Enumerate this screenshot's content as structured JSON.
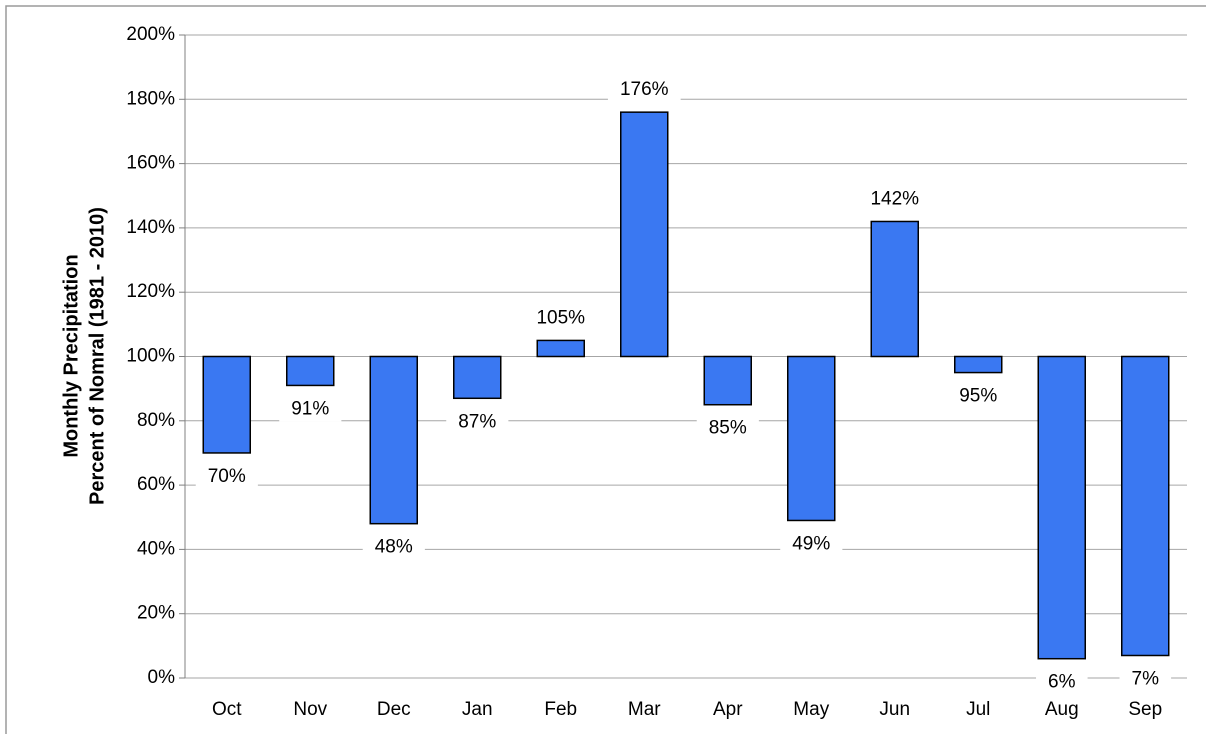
{
  "chart_data": {
    "type": "bar",
    "ylabel": [
      "Monthly Precipitation",
      "Percent  of Nomral (1981 - 2010)"
    ],
    "categories": [
      "Oct",
      "Nov",
      "Dec",
      "Jan",
      "Feb",
      "Mar",
      "Apr",
      "May",
      "Jun",
      "Jul",
      "Aug",
      "Sep"
    ],
    "values": [
      70,
      91,
      48,
      87,
      105,
      176,
      85,
      49,
      142,
      95,
      6,
      7
    ],
    "value_labels": [
      "70%",
      "91%",
      "48%",
      "87%",
      "105%",
      "176%",
      "85%",
      "49%",
      "142%",
      "95%",
      "6%",
      "7%"
    ],
    "baseline": 100,
    "color": "#3a78f2",
    "ylim": [
      0,
      200
    ],
    "yticks": [
      {
        "value": 0,
        "label": "0%"
      },
      {
        "value": 20,
        "label": "20%"
      },
      {
        "value": 40,
        "label": "40%"
      },
      {
        "value": 60,
        "label": "60%"
      },
      {
        "value": 80,
        "label": "80%"
      },
      {
        "value": 100,
        "label": "100%"
      },
      {
        "value": 120,
        "label": "120%"
      },
      {
        "value": 140,
        "label": "140%"
      },
      {
        "value": 160,
        "label": "160%"
      },
      {
        "value": 180,
        "label": "180%"
      },
      {
        "value": 200,
        "label": "200%"
      }
    ],
    "grid": true
  }
}
